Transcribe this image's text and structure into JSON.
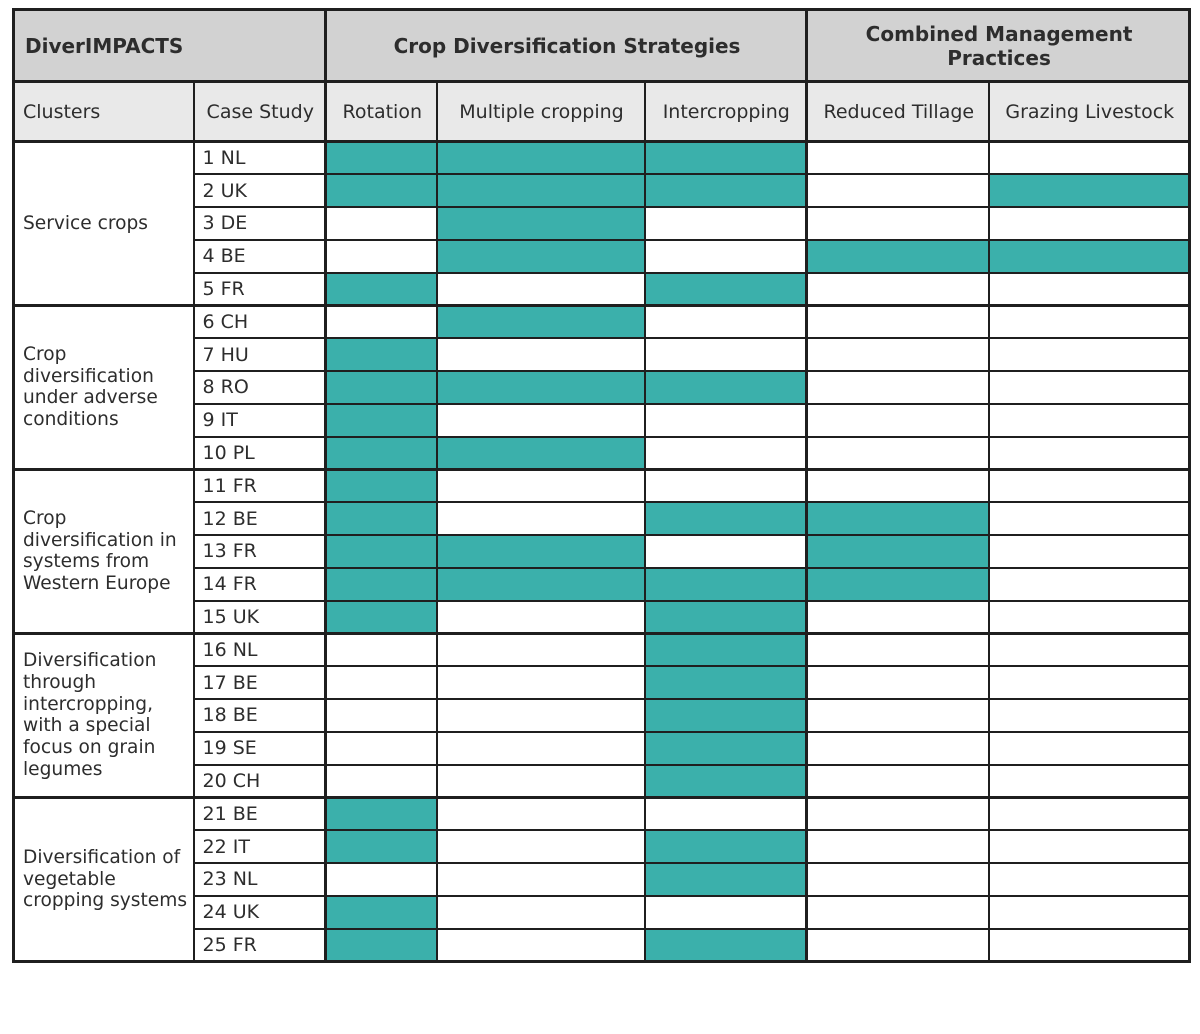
{
  "chart_data": {
    "type": "table",
    "title": "DiverIMPACTS",
    "column_groups": [
      {
        "label": "DiverIMPACTS",
        "span": 2
      },
      {
        "label": "Crop Diversification Strategies",
        "span": 3
      },
      {
        "label": "Combined Management Practices",
        "span": 2
      }
    ],
    "columns": [
      "Clusters",
      "Case Study",
      "Rotation",
      "Multiple cropping",
      "Intercropping",
      "Reduced Tillage",
      "Grazing Livestock"
    ],
    "mark_columns": [
      "Rotation",
      "Multiple cropping",
      "Intercropping",
      "Reduced Tillage",
      "Grazing Livestock"
    ],
    "clusters": [
      {
        "label": "Service crops",
        "rows": [
          {
            "case_study": "1 NL",
            "cells": [
              1,
              1,
              1,
              0,
              0
            ]
          },
          {
            "case_study": "2 UK",
            "cells": [
              1,
              1,
              1,
              0,
              1
            ]
          },
          {
            "case_study": "3 DE",
            "cells": [
              0,
              1,
              0,
              0,
              0
            ]
          },
          {
            "case_study": "4 BE",
            "cells": [
              0,
              1,
              0,
              1,
              1
            ]
          },
          {
            "case_study": "5 FR",
            "cells": [
              1,
              0,
              1,
              0,
              0
            ]
          }
        ]
      },
      {
        "label": "Crop diversification under adverse conditions",
        "rows": [
          {
            "case_study": "6 CH",
            "cells": [
              0,
              1,
              0,
              0,
              0
            ]
          },
          {
            "case_study": "7 HU",
            "cells": [
              1,
              0,
              0,
              0,
              0
            ]
          },
          {
            "case_study": "8 RO",
            "cells": [
              1,
              1,
              1,
              0,
              0
            ]
          },
          {
            "case_study": "9 IT",
            "cells": [
              1,
              0,
              0,
              0,
              0
            ]
          },
          {
            "case_study": "10 PL",
            "cells": [
              1,
              1,
              0,
              0,
              0
            ]
          }
        ]
      },
      {
        "label": "Crop diversification in systems from Western Europe",
        "rows": [
          {
            "case_study": "11 FR",
            "cells": [
              1,
              0,
              0,
              0,
              0
            ]
          },
          {
            "case_study": "12 BE",
            "cells": [
              1,
              0,
              1,
              1,
              0
            ]
          },
          {
            "case_study": "13 FR",
            "cells": [
              1,
              1,
              0,
              1,
              0
            ]
          },
          {
            "case_study": "14 FR",
            "cells": [
              1,
              1,
              1,
              1,
              0
            ]
          },
          {
            "case_study": "15 UK",
            "cells": [
              1,
              0,
              1,
              0,
              0
            ]
          }
        ]
      },
      {
        "label": "Diversification through intercropping, with a special focus on grain legumes",
        "rows": [
          {
            "case_study": "16 NL",
            "cells": [
              0,
              0,
              1,
              0,
              0
            ]
          },
          {
            "case_study": "17 BE",
            "cells": [
              0,
              0,
              1,
              0,
              0
            ]
          },
          {
            "case_study": "18 BE",
            "cells": [
              0,
              0,
              1,
              0,
              0
            ]
          },
          {
            "case_study": "19 SE",
            "cells": [
              0,
              0,
              1,
              0,
              0
            ]
          },
          {
            "case_study": "20 CH",
            "cells": [
              0,
              0,
              1,
              0,
              0
            ]
          }
        ]
      },
      {
        "label": "Diversification of vegetable cropping systems",
        "rows": [
          {
            "case_study": "21 BE",
            "cells": [
              1,
              0,
              0,
              0,
              0
            ]
          },
          {
            "case_study": "22 IT",
            "cells": [
              1,
              0,
              1,
              0,
              0
            ]
          },
          {
            "case_study": "23 NL",
            "cells": [
              0,
              0,
              1,
              0,
              0
            ]
          },
          {
            "case_study": "24 UK",
            "cells": [
              1,
              0,
              0,
              0,
              0
            ]
          },
          {
            "case_study": "25 FR",
            "cells": [
              1,
              0,
              1,
              0,
              0
            ]
          }
        ]
      }
    ]
  },
  "colors": {
    "filled": "#3bb0ab",
    "header_top_bg": "#d2d2d2",
    "header_sub_bg": "#e9e9e9",
    "border": "#1f1f1f"
  }
}
